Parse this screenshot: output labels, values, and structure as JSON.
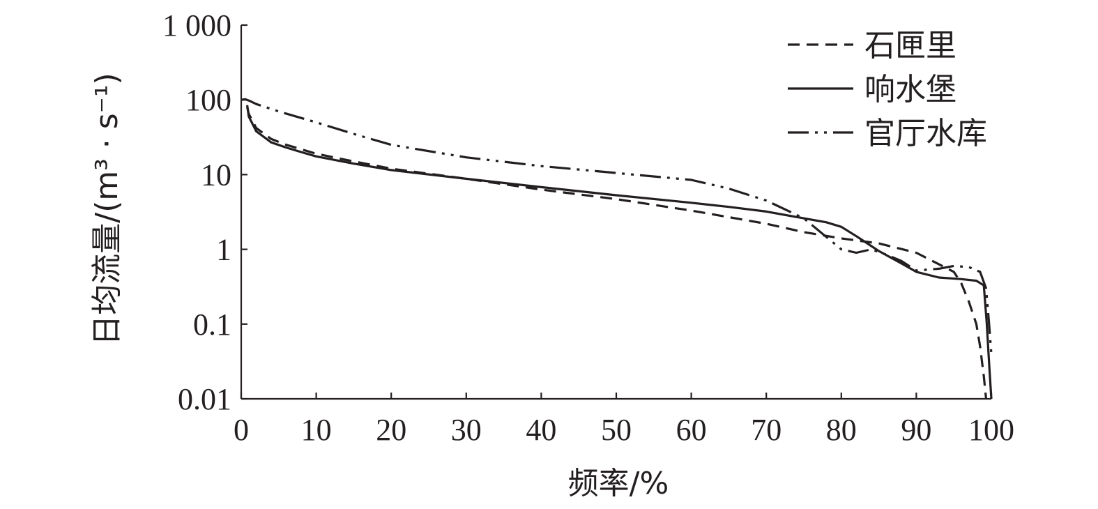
{
  "chart_data": {
    "type": "line",
    "xlabel": "频率/%",
    "ylabel": "日均流量/(m³ · s⁻¹)",
    "y_scale": "log",
    "xlim": [
      0,
      100
    ],
    "ylim": [
      0.01,
      1000
    ],
    "x_ticks": [
      0,
      10,
      20,
      30,
      40,
      50,
      60,
      70,
      80,
      90,
      100
    ],
    "x_tick_labels": [
      "0",
      "10",
      "20",
      "30",
      "40",
      "50",
      "60",
      "70",
      "80",
      "90",
      "100"
    ],
    "y_ticks": [
      0.01,
      0.1,
      1,
      10,
      100,
      1000
    ],
    "y_tick_labels": [
      "0.01",
      "0.1",
      "1",
      "10",
      "100",
      "1 000"
    ],
    "grid": false,
    "legend_position": "top-right",
    "series": [
      {
        "name": "石匣里",
        "style": "dashed",
        "x": [
          0.8,
          1,
          2,
          4,
          6,
          10,
          15,
          20,
          30,
          40,
          50,
          60,
          70,
          75,
          80,
          85,
          90,
          95,
          96,
          97,
          98,
          98.5,
          99,
          99.3
        ],
        "y": [
          80,
          65,
          42,
          30,
          25,
          19,
          15,
          12,
          8.8,
          6.3,
          4.7,
          3.3,
          2.2,
          1.7,
          1.4,
          1.2,
          0.9,
          0.5,
          0.35,
          0.2,
          0.1,
          0.05,
          0.02,
          0.01
        ]
      },
      {
        "name": "响水堡",
        "style": "solid",
        "x": [
          0.8,
          1,
          2,
          4,
          6,
          8,
          10,
          15,
          20,
          30,
          40,
          50,
          60,
          65,
          70,
          75,
          78,
          80,
          82,
          85,
          88,
          90,
          93,
          96,
          98,
          99,
          99.4,
          99.7,
          100
        ],
        "y": [
          85,
          60,
          38,
          27,
          23,
          20,
          17.5,
          14,
          11.5,
          8.8,
          6.8,
          5.3,
          4.2,
          3.7,
          3.2,
          2.6,
          2.3,
          2.0,
          1.5,
          0.95,
          0.65,
          0.5,
          0.42,
          0.4,
          0.38,
          0.33,
          0.1,
          0.03,
          0.01
        ]
      },
      {
        "name": "官厅水库",
        "style": "dash-dot-dot",
        "x": [
          0,
          0.5,
          1,
          2,
          5,
          10,
          15,
          20,
          30,
          40,
          50,
          60,
          65,
          70,
          75,
          80,
          82,
          84,
          86,
          88,
          90,
          93,
          95,
          97,
          98.5,
          99.3,
          99.7,
          100
        ],
        "y": [
          100,
          102,
          98,
          88,
          70,
          50,
          35,
          25,
          17,
          13,
          10.5,
          8.5,
          6.5,
          4.5,
          2.6,
          1.0,
          0.9,
          1.0,
          0.85,
          0.7,
          0.52,
          0.55,
          0.6,
          0.58,
          0.5,
          0.3,
          0.1,
          0.04
        ]
      }
    ]
  }
}
